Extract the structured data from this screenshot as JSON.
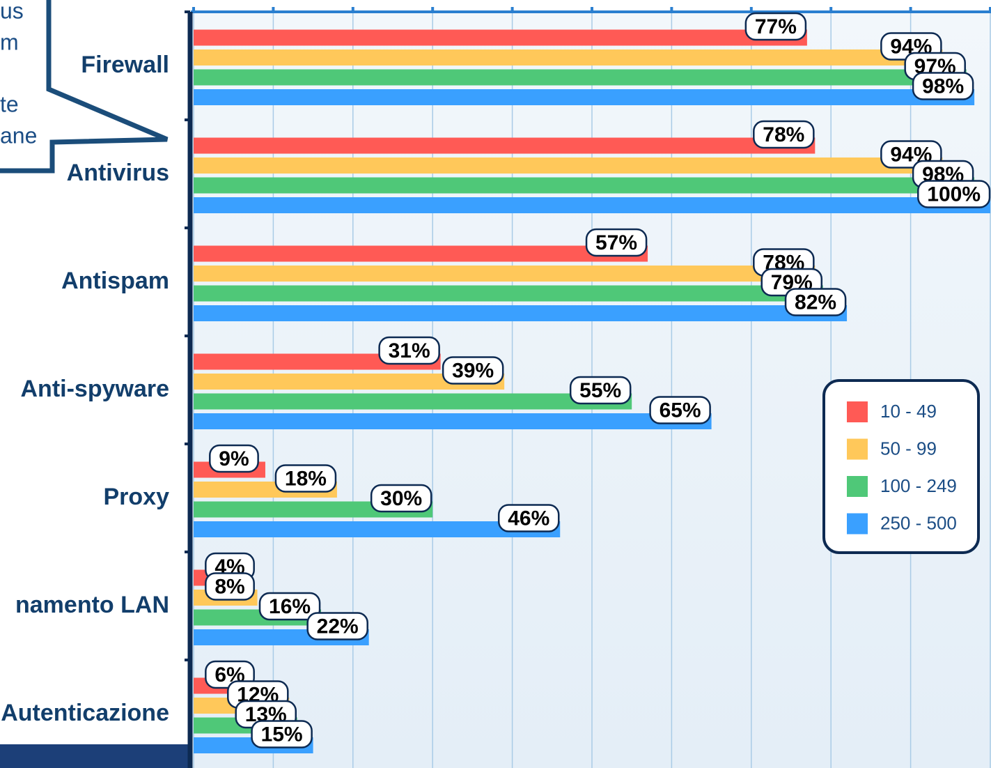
{
  "chart_data": {
    "type": "bar",
    "orientation": "horizontal",
    "categories": [
      "Firewall",
      "Antivirus",
      "Antispam",
      "Anti-spyware",
      "Proxy",
      "namento LAN",
      "Autenticazione"
    ],
    "series": [
      {
        "name": "10 - 49",
        "color": "#ff5a55",
        "values": [
          77,
          78,
          57,
          31,
          9,
          4,
          6
        ],
        "value_labels": [
          "77%",
          "78%",
          "57%",
          "31%",
          "9%",
          "4%",
          "6%"
        ]
      },
      {
        "name": "50 - 99",
        "color": "#ffc85a",
        "values": [
          94,
          94,
          78,
          39,
          18,
          8,
          12
        ],
        "value_labels": [
          "94%",
          "94%",
          "78%",
          "39%",
          "18%",
          "8%",
          "12%"
        ]
      },
      {
        "name": "100 - 249",
        "color": "#4fc878",
        "values": [
          97,
          98,
          79,
          55,
          30,
          16,
          13
        ],
        "value_labels": [
          "97%",
          "98%",
          "79%",
          "55%",
          "30%",
          "16%",
          "13%"
        ]
      },
      {
        "name": "250 - 500",
        "color": "#3aa0ff",
        "values": [
          98,
          100,
          82,
          65,
          46,
          22,
          15
        ],
        "value_labels": [
          "98%",
          "100%",
          "82%",
          "65%",
          "46%",
          "22%",
          "15%"
        ]
      }
    ],
    "xlim": [
      0,
      100
    ],
    "xticks": [
      0,
      10,
      20,
      30,
      40,
      50,
      60,
      70,
      80,
      90,
      100
    ],
    "grid": true,
    "legend": "right",
    "callout": [
      "us",
      "m",
      "te",
      "ane"
    ]
  }
}
